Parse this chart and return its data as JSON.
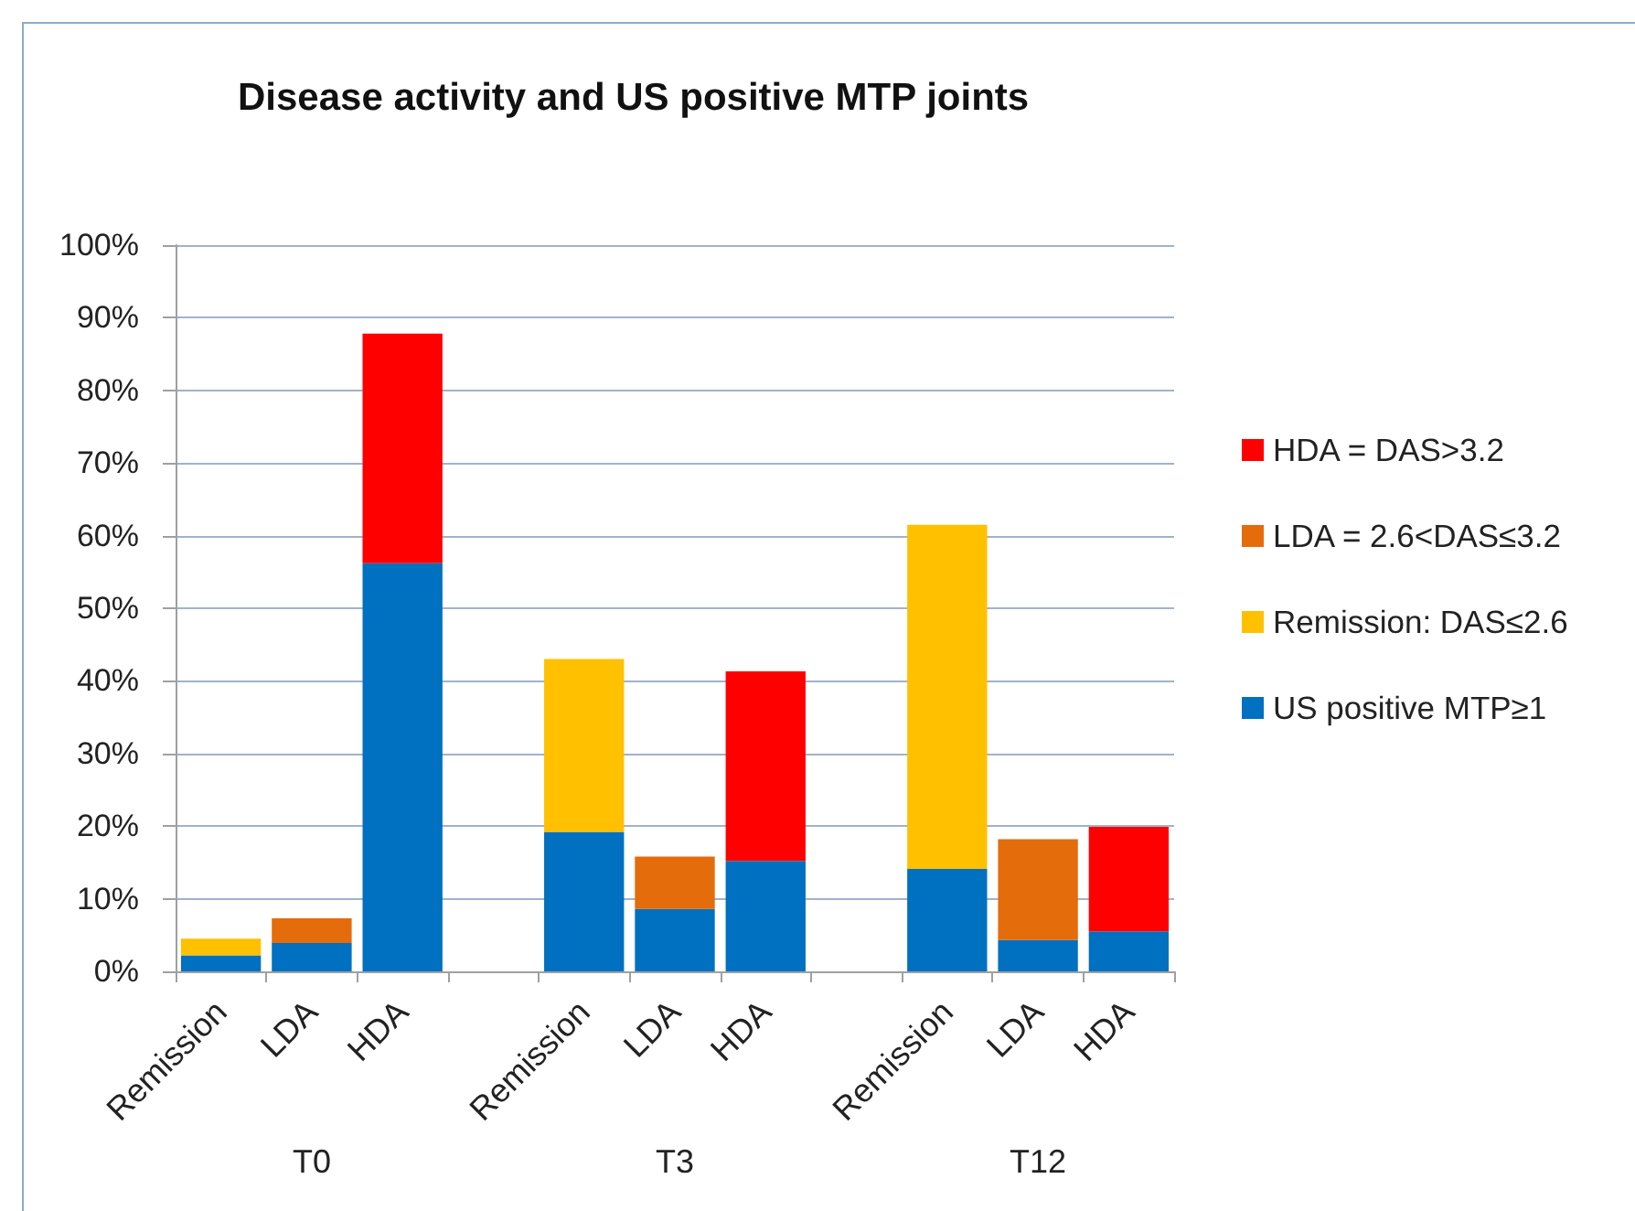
{
  "chart_data": {
    "type": "bar",
    "title": "Disease activity and US positive MTP joints",
    "categories": [
      "Remission",
      "LDA",
      "HDA",
      null,
      "Remission",
      "LDA",
      "HDA",
      null,
      "Remission",
      "LDA",
      "HDA"
    ],
    "series": [
      {
        "name": "US positive MTP≥1",
        "color": "#0070c0",
        "values": [
          2.2,
          3.9,
          56.2,
          null,
          19.2,
          8.6,
          15.2,
          null,
          14.1,
          4.3,
          5.5
        ]
      },
      {
        "name": "Remission: DAS≤2.6",
        "color": "#ffc000",
        "values": [
          2.3,
          null,
          null,
          null,
          23.8,
          null,
          null,
          null,
          47.4,
          null,
          null
        ]
      },
      {
        "name": "LDA = 2.6<DAS≤3.2",
        "color": "#e46c0a",
        "values": [
          null,
          3.4,
          null,
          null,
          null,
          7.2,
          null,
          null,
          null,
          13.9,
          null
        ]
      },
      {
        "name": "HDA = DAS>3.2",
        "color": "#ff0000",
        "values": [
          null,
          null,
          31.6,
          null,
          null,
          null,
          26.1,
          null,
          null,
          null,
          14.4
        ]
      }
    ],
    "stacked": true,
    "ylim": [
      0,
      100
    ],
    "yticks": [
      {
        "value": 0,
        "label": "0%"
      },
      {
        "value": 10,
        "label": "10%"
      },
      {
        "value": 20,
        "label": "20%"
      },
      {
        "value": 30,
        "label": "30%"
      },
      {
        "value": 40,
        "label": "40%"
      },
      {
        "value": 50,
        "label": "50%"
      },
      {
        "value": 60,
        "label": "60%"
      },
      {
        "value": 70,
        "label": "70%"
      },
      {
        "value": 80,
        "label": "80%"
      },
      {
        "value": 90,
        "label": "90%"
      },
      {
        "value": 100,
        "label": "100%"
      }
    ],
    "grid": "y",
    "legend": "right",
    "annotations": [
      "T0",
      "T3",
      "T12"
    ]
  }
}
